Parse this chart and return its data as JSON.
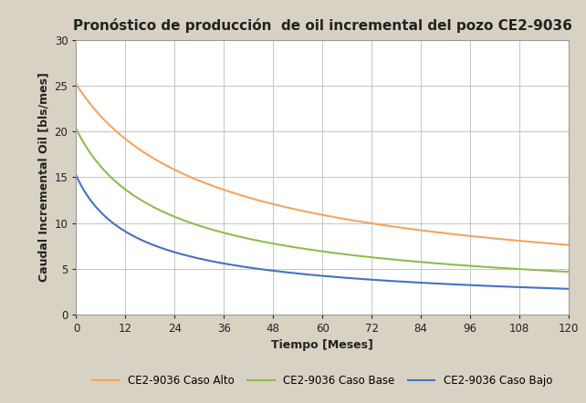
{
  "title": "Pronóstico de producción  de oil incremental del pozo CE2-9036",
  "xlabel": "Tiempo [Meses]",
  "ylabel": "Caudal Incremental Oil [bls/mes]",
  "xlim": [
    0,
    120
  ],
  "ylim": [
    0,
    30
  ],
  "xticks": [
    0,
    12,
    24,
    36,
    48,
    60,
    72,
    84,
    96,
    108,
    120
  ],
  "yticks": [
    0,
    5,
    10,
    15,
    20,
    25,
    30
  ],
  "curves": {
    "alto": {
      "q0": 25.2,
      "b": 1.5,
      "Di": 0.028,
      "color": "#F4A460",
      "label": "CE2-9036 Caso Alto"
    },
    "base": {
      "q0": 20.3,
      "b": 1.5,
      "Di": 0.045,
      "color": "#8FBC4F",
      "label": "CE2-9036 Caso Base"
    },
    "bajo": {
      "q0": 15.2,
      "b": 1.5,
      "Di": 0.065,
      "color": "#4472C4",
      "label": "CE2-9036 Caso Bajo"
    }
  },
  "outer_bg": "#D8D2C4",
  "plot_bg": "#FFFFFF",
  "grid_color": "#BBBBBB",
  "title_fontsize": 11,
  "label_fontsize": 9,
  "tick_fontsize": 8.5,
  "legend_fontsize": 8.5,
  "line_width": 1.5
}
